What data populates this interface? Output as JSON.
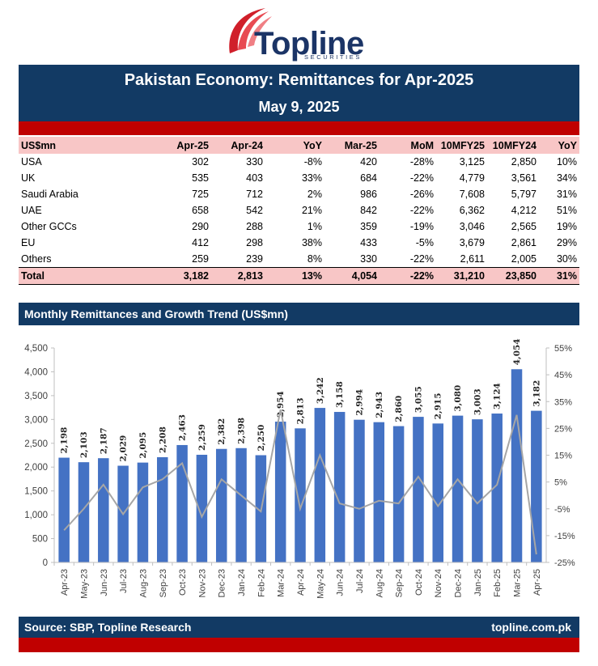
{
  "brand": {
    "name": "Topline",
    "tagline": "SECURITIES"
  },
  "header": {
    "title": "Pakistan Economy: Remittances for Apr-2025",
    "date": "May 9, 2025"
  },
  "table": {
    "columns": [
      "US$mn",
      "Apr-25",
      "Apr-24",
      "YoY",
      "Mar-25",
      "MoM",
      "10MFY25",
      "10MFY24",
      "YoY"
    ],
    "rows": [
      [
        "USA",
        "302",
        "330",
        "-8%",
        "420",
        "-28%",
        "3,125",
        "2,850",
        "10%"
      ],
      [
        "UK",
        "535",
        "403",
        "33%",
        "684",
        "-22%",
        "4,779",
        "3,561",
        "34%"
      ],
      [
        "Saudi Arabia",
        "725",
        "712",
        "2%",
        "986",
        "-26%",
        "7,608",
        "5,797",
        "31%"
      ],
      [
        "UAE",
        "658",
        "542",
        "21%",
        "842",
        "-22%",
        "6,362",
        "4,212",
        "51%"
      ],
      [
        "Other GCCs",
        "290",
        "288",
        "1%",
        "359",
        "-19%",
        "3,046",
        "2,565",
        "19%"
      ],
      [
        "EU",
        "412",
        "298",
        "38%",
        "433",
        "-5%",
        "3,679",
        "2,861",
        "29%"
      ],
      [
        "Others",
        "259",
        "239",
        "8%",
        "330",
        "-22%",
        "2,611",
        "2,005",
        "30%"
      ]
    ],
    "total": [
      "Total",
      "3,182",
      "2,813",
      "13%",
      "4,054",
      "-22%",
      "31,210",
      "23,850",
      "31%"
    ]
  },
  "section_title": "Monthly Remittances and Growth Trend (US$mn)",
  "chart_data": {
    "type": "bar",
    "categories": [
      "Apr-23",
      "May-23",
      "Jun-23",
      "Jul-23",
      "Aug-23",
      "Sep-23",
      "Oct-23",
      "Nov-23",
      "Dec-23",
      "Jan-24",
      "Feb-24",
      "Mar-24",
      "Apr-24",
      "May-24",
      "Jun-24",
      "Jul-24",
      "Aug-24",
      "Sep-24",
      "Oct-24",
      "Nov-24",
      "Dec-24",
      "Jan-25",
      "Feb-25",
      "Mar-25",
      "Apr-25"
    ],
    "series": [
      {
        "type": "bar",
        "axis": "left",
        "values": [
          2198,
          2103,
          2187,
          2029,
          2095,
          2208,
          2463,
          2259,
          2382,
          2398,
          2250,
          2954,
          2813,
          3242,
          3158,
          2994,
          2943,
          2860,
          3055,
          2915,
          3080,
          3003,
          3124,
          4054,
          3182
        ],
        "labels": [
          "2,198",
          "2,103",
          "2,187",
          "2,029",
          "2,095",
          "2,208",
          "2,463",
          "2,259",
          "2,382",
          "2,398",
          "2,250",
          "2,954",
          "2,813",
          "3,242",
          "3,158",
          "2,994",
          "2,943",
          "2,860",
          "3,055",
          "2,915",
          "3,080",
          "3,003",
          "3,124",
          "4,054",
          "3,182"
        ]
      },
      {
        "type": "line",
        "axis": "right",
        "unit": "%",
        "values": [
          -13,
          -5,
          4,
          -7,
          3,
          6,
          12,
          -8,
          6,
          0,
          -6,
          32,
          -5,
          15,
          -3,
          -5,
          -2,
          -3,
          7,
          -4,
          6,
          -3,
          4,
          30,
          -22
        ]
      }
    ],
    "yaxis_left": {
      "min": 0,
      "max": 4500,
      "step": 500,
      "tick_labels": [
        "0",
        "500",
        "1,000",
        "1,500",
        "2,000",
        "2,500",
        "3,000",
        "3,500",
        "4,000",
        "4,500"
      ]
    },
    "yaxis_right": {
      "min": -25,
      "max": 55,
      "step": 10,
      "tick_labels": [
        "-25%",
        "-15%",
        "-5%",
        "5%",
        "15%",
        "25%",
        "35%",
        "45%",
        "55%"
      ]
    },
    "colors": {
      "bar": "#4472c4",
      "line": "#a6a6a6"
    },
    "grid": false
  },
  "footer": {
    "source": "Source: SBP, Topline Research",
    "website": "topline.com.pk"
  },
  "colors": {
    "navy": "#123a64",
    "red": "#c00000",
    "pink": "#f8c6c6"
  }
}
